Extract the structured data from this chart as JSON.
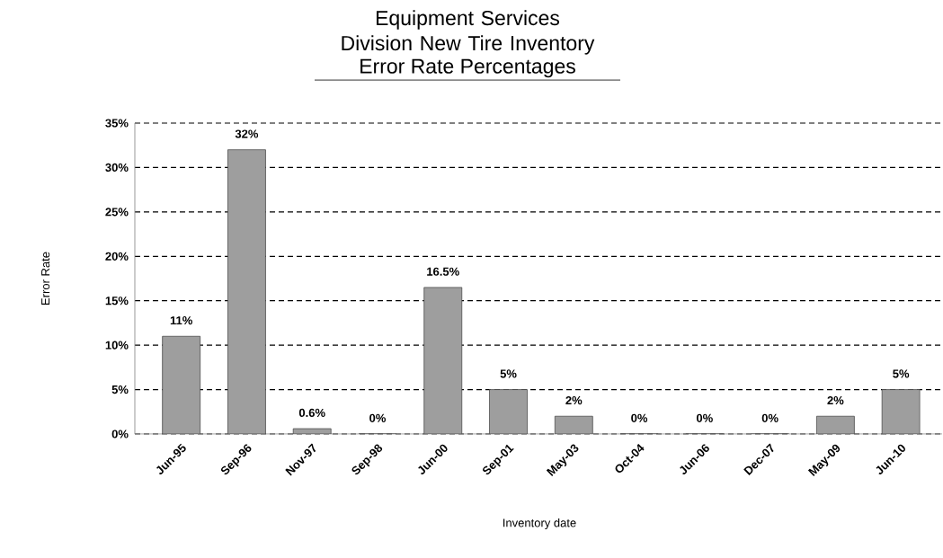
{
  "chart_data": {
    "type": "bar",
    "title": "Equipment Services Division New Tire Inventory",
    "subtitle": "Error Rate Percentages",
    "xlabel": "Inventory date",
    "ylabel": "Error Rate",
    "categories": [
      "Jun-95",
      "Sep-96",
      "Nov-97",
      "Sep-98",
      "Jun-00",
      "Sep-01",
      "May-03",
      "Oct-04",
      "Jun-06",
      "Dec-07",
      "May-09",
      "Jun-10"
    ],
    "values": [
      11,
      32,
      0.6,
      0,
      16.5,
      5,
      2,
      0,
      0,
      0,
      2,
      5
    ],
    "value_labels": [
      "11%",
      "32%",
      "0.6%",
      "0%",
      "16.5%",
      "5%",
      "2%",
      "0%",
      "0%",
      "0%",
      "2%",
      "5%"
    ],
    "color": "#9e9e9e",
    "ylim": [
      0,
      35
    ],
    "yticks": [
      {
        "value": 0,
        "label": "0%"
      },
      {
        "value": 5,
        "label": "5%"
      },
      {
        "value": 10,
        "label": "10%"
      },
      {
        "value": 15,
        "label": "15%"
      },
      {
        "value": 20,
        "label": "20%"
      },
      {
        "value": 25,
        "label": "25%"
      },
      {
        "value": 30,
        "label": "30%"
      },
      {
        "value": 35,
        "label": "35%"
      }
    ],
    "grid": "y"
  }
}
